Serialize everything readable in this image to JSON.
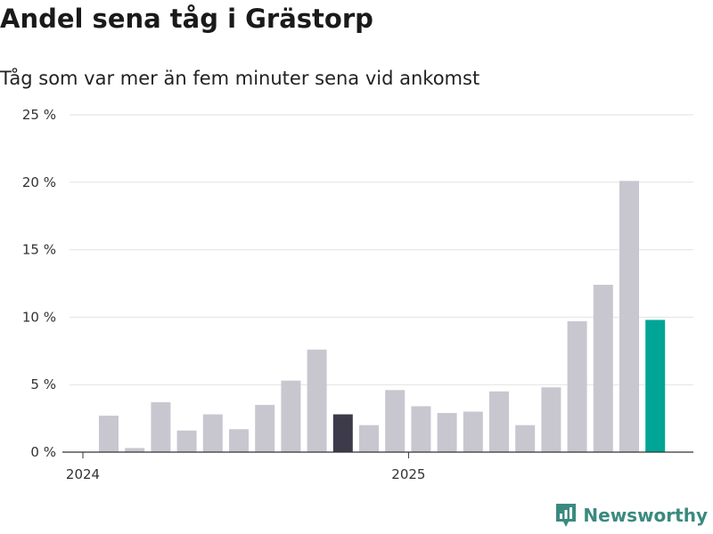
{
  "chart_data": {
    "type": "bar",
    "title": "Andel sena tåg i Grästorp",
    "subtitle": "Tåg som var mer än fem minuter sena vid ankomst",
    "ylim": [
      0,
      25
    ],
    "yticks": [
      0,
      5,
      10,
      15,
      20,
      25
    ],
    "ytick_labels": [
      "0 %",
      "5 %",
      "10 %",
      "15 %",
      "20 %",
      "25 %"
    ],
    "xtick_labels": [
      {
        "label": "2024",
        "at_index": 0
      },
      {
        "label": "2025",
        "at_index": 12
      }
    ],
    "values": [
      2.7,
      0.3,
      3.7,
      1.6,
      2.8,
      1.7,
      3.5,
      5.3,
      7.6,
      2.8,
      2.0,
      4.6,
      3.4,
      2.9,
      3.0,
      4.5,
      2.0,
      4.8,
      9.7,
      12.4,
      20.1,
      9.8
    ],
    "highlight": [
      {
        "index": 9,
        "color": "#3d3b4a"
      },
      {
        "index": 21,
        "color": "#00a595"
      }
    ],
    "bar_color": "#c8c7d0",
    "grid": true,
    "legend": "none"
  },
  "brand": {
    "name": "Newsworthy",
    "icon": "newsworthy-logo-icon",
    "color": "#3a8a7f"
  }
}
